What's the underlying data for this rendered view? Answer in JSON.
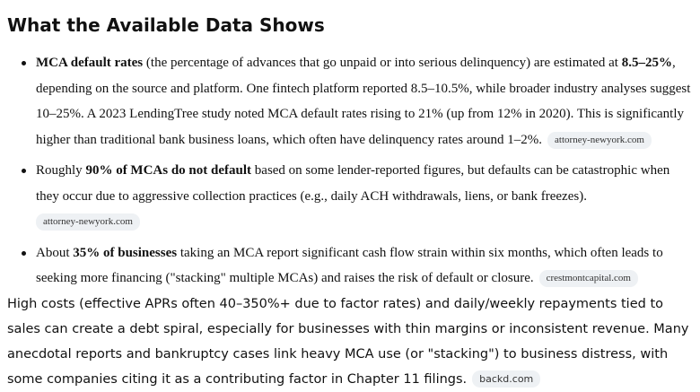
{
  "heading": "What the Available Data Shows",
  "bullets": [
    {
      "bold1": "MCA default rates",
      "text1": " (the percentage of advances that go unpaid or into serious delinquency) are estimated at ",
      "bold2": "8.5–25%",
      "text2": ", depending on the source and platform. One fintech platform reported 8.5–10.5%, while broader industry analyses suggest 10–25%. A 2023 LendingTree study noted MCA default rates rising to 21% (up from 12% in 2020). This is significantly higher than traditional bank business loans, which often have delinquency rates around 1–2%.",
      "source": "attorney-newyork.com"
    },
    {
      "text1": "Roughly ",
      "bold1": "90% of MCAs do not default",
      "text2": " based on some lender-reported figures, but defaults can be catastrophic when they occur due to aggressive collection practices (e.g., daily ACH withdrawals, liens, or bank freezes).",
      "source": "attorney-newyork.com"
    },
    {
      "text1": "About ",
      "bold1": "35% of businesses",
      "text2": " taking an MCA report significant cash flow strain within six months, which often leads to seeking more financing (\"stacking\" multiple MCAs) and raises the risk of default or closure.",
      "source": "crestmontcapital.com"
    }
  ],
  "summary": {
    "text": "High costs (effective APRs often 40–350%+ due to factor rates) and daily/weekly repayments tied to sales can create a debt spiral, especially for businesses with thin margins or inconsistent revenue. Many anecdotal reports and bankruptcy cases link heavy MCA use (or \"stacking\") to business distress, with some companies citing it as a contributing factor in Chapter 11 filings.",
    "source": "backd.com"
  }
}
